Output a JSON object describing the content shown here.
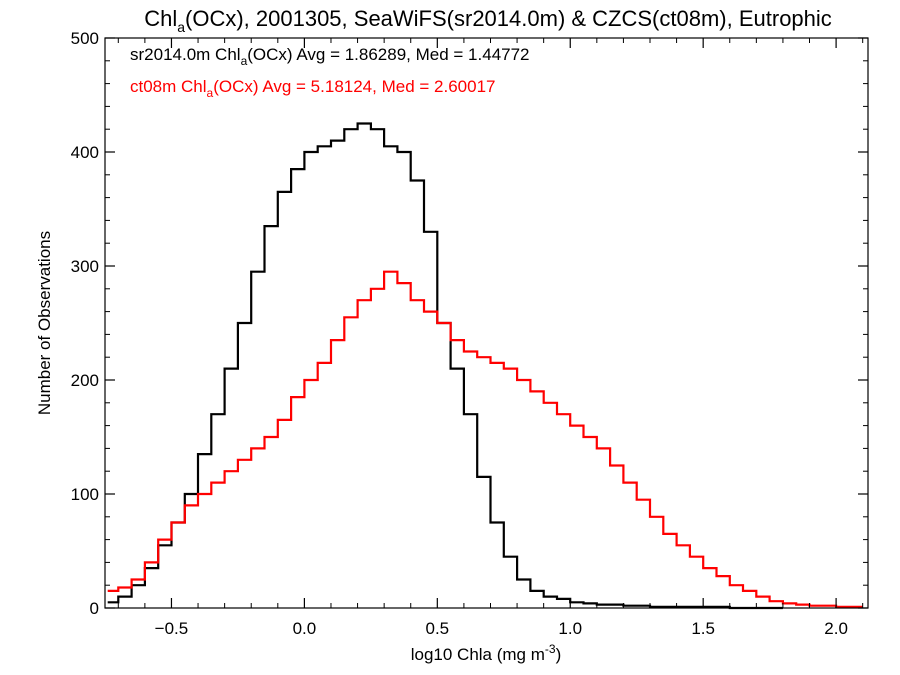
{
  "chart_data": {
    "type": "line",
    "style": "step",
    "title": {
      "prefix": "Chl",
      "sub": "a",
      "rest": "(OCx), 2001305, SeaWiFS(sr2014.0m) & CZCS(ct08m), Eutrophic"
    },
    "xlabel": {
      "text": "log10 Chla (mg m",
      "sup": "-3",
      "close": ")"
    },
    "ylabel": "Number of Observations",
    "xlim": [
      -0.75,
      2.12
    ],
    "ylim": [
      0,
      500
    ],
    "x_ticks": [
      -0.5,
      0.0,
      0.5,
      1.0,
      1.5,
      2.0
    ],
    "x_tick_labels": [
      "−0.5",
      "0.0",
      "0.5",
      "1.0",
      "1.5",
      "2.0"
    ],
    "y_ticks": [
      0,
      100,
      200,
      300,
      400,
      500
    ],
    "y_tick_labels": [
      "0",
      "100",
      "200",
      "300",
      "400",
      "500"
    ],
    "grid": false,
    "legend_position": "top-left",
    "series": [
      {
        "legend_prefix": "sr2014.0m Chl",
        "legend_sub": "a",
        "legend_rest": "(OCx) Avg = 1.86289, Med = 1.44772",
        "color": "#000000",
        "x": [
          -0.74,
          -0.7,
          -0.65,
          -0.6,
          -0.55,
          -0.5,
          -0.45,
          -0.4,
          -0.35,
          -0.3,
          -0.25,
          -0.2,
          -0.15,
          -0.1,
          -0.05,
          0.0,
          0.05,
          0.1,
          0.15,
          0.2,
          0.25,
          0.3,
          0.35,
          0.4,
          0.45,
          0.5,
          0.55,
          0.6,
          0.65,
          0.7,
          0.75,
          0.8,
          0.85,
          0.9,
          0.95,
          1.0,
          1.05,
          1.1,
          1.2,
          1.3,
          1.4,
          1.5,
          1.6,
          1.7,
          1.75
        ],
        "y": [
          5,
          10,
          20,
          35,
          55,
          75,
          100,
          135,
          170,
          210,
          250,
          295,
          335,
          365,
          385,
          400,
          405,
          410,
          420,
          425,
          420,
          405,
          400,
          375,
          330,
          250,
          210,
          170,
          115,
          75,
          45,
          25,
          15,
          10,
          8,
          5,
          4,
          3,
          2,
          1,
          1,
          1,
          0,
          0,
          0
        ]
      },
      {
        "legend_prefix": "ct08m Chl",
        "legend_sub": "a",
        "legend_rest": "(OCx) Avg = 5.18124, Med = 2.60017",
        "color": "#ff0000",
        "x": [
          -0.74,
          -0.7,
          -0.65,
          -0.6,
          -0.55,
          -0.5,
          -0.45,
          -0.4,
          -0.35,
          -0.3,
          -0.25,
          -0.2,
          -0.15,
          -0.1,
          -0.05,
          0.0,
          0.05,
          0.1,
          0.15,
          0.2,
          0.25,
          0.3,
          0.35,
          0.4,
          0.45,
          0.5,
          0.55,
          0.6,
          0.65,
          0.7,
          0.75,
          0.8,
          0.85,
          0.9,
          0.95,
          1.0,
          1.05,
          1.1,
          1.15,
          1.2,
          1.25,
          1.3,
          1.35,
          1.4,
          1.45,
          1.5,
          1.55,
          1.6,
          1.65,
          1.7,
          1.75,
          1.8,
          1.85,
          1.9,
          2.0
        ],
        "y": [
          15,
          18,
          25,
          40,
          60,
          75,
          90,
          100,
          110,
          120,
          130,
          140,
          150,
          165,
          185,
          200,
          215,
          235,
          255,
          270,
          280,
          295,
          285,
          270,
          260,
          250,
          235,
          225,
          220,
          215,
          210,
          200,
          190,
          180,
          170,
          160,
          150,
          140,
          125,
          110,
          95,
          80,
          65,
          55,
          45,
          35,
          28,
          20,
          15,
          10,
          6,
          4,
          3,
          2,
          1
        ]
      }
    ]
  }
}
